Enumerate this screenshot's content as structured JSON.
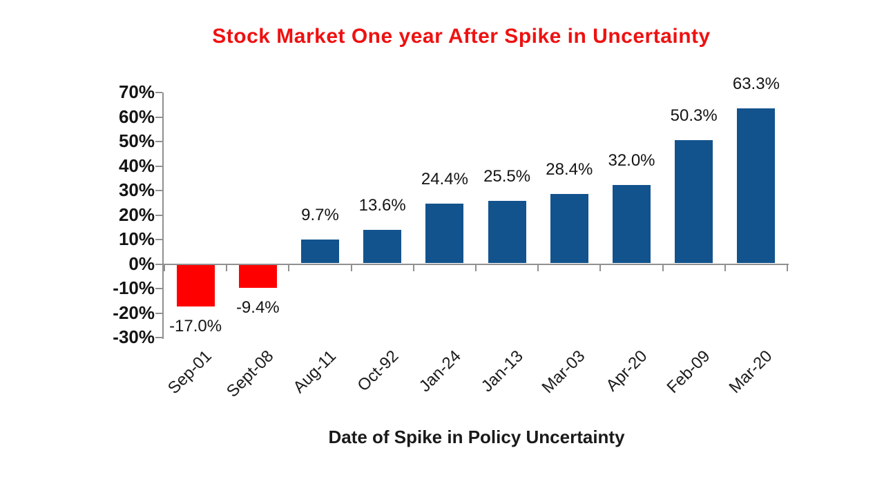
{
  "title": {
    "text": "Stock Market One year After Spike in Uncertainty",
    "color": "#EE1111"
  },
  "chart_data": {
    "type": "bar",
    "title": "Stock Market One year After Spike in Uncertainty",
    "xlabel": "Date of Spike in Policy Uncertainty",
    "ylabel": "",
    "categories": [
      "Sep-01",
      "Sept-08",
      "Aug-11",
      "Oct-92",
      "Jan-24",
      "Jan-13",
      "Mar-03",
      "Apr-20",
      "Feb-09",
      "Mar-20"
    ],
    "values": [
      -17.0,
      -9.4,
      9.7,
      13.6,
      24.4,
      25.5,
      28.4,
      32.0,
      50.3,
      63.3
    ],
    "data_labels": [
      "-17.0%",
      "-9.4%",
      "9.7%",
      "13.6%",
      "24.4%",
      "25.5%",
      "28.4%",
      "32.0%",
      "50.3%",
      "63.3%"
    ],
    "ylim": [
      -30,
      70
    ],
    "ytick_step": 10,
    "ytick_values": [
      70,
      60,
      50,
      40,
      30,
      20,
      10,
      0,
      -10,
      -20,
      -30
    ],
    "ytick_labels": [
      "70%",
      "60%",
      "50%",
      "40%",
      "30%",
      "20%",
      "10%",
      "0%",
      "-10%",
      "-20%",
      "-30%"
    ],
    "grid": false,
    "legend": false,
    "positive_color": "#12538D",
    "negative_color": "#FF0000",
    "axis_color": "#909090"
  }
}
